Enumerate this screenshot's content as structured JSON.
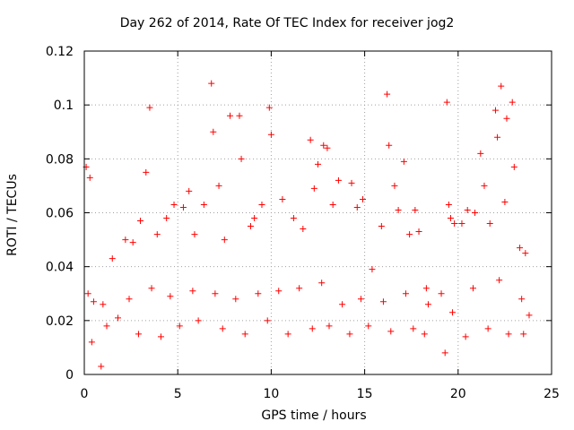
{
  "chart_data": {
    "type": "scatter",
    "title": "Day 262 of 2014, Rate Of TEC Index for receiver jog2",
    "xlabel": "GPS time / hours",
    "ylabel": "ROTI / TECUs",
    "xlim": [
      0,
      25
    ],
    "ylim": [
      0,
      0.12
    ],
    "xticks": [
      0,
      5,
      10,
      15,
      20,
      25
    ],
    "xtick_labels": [
      "0",
      "5",
      "10",
      "15",
      "20",
      "25"
    ],
    "yticks": [
      0,
      0.02,
      0.04,
      0.06,
      0.08,
      0.1,
      0.12
    ],
    "ytick_labels": [
      "0",
      "0.02",
      "0.04",
      "0.06",
      "0.08",
      "0.1",
      "0.12"
    ],
    "grid": true,
    "marker": "+",
    "color": "#ff0000",
    "series": [
      {
        "name": "jog2",
        "x": [
          0.1,
          0.3,
          0.9,
          1.5,
          2.2,
          3.3,
          3.5,
          4.8,
          5.3,
          5.6,
          6.8,
          6.9,
          7.8,
          8.3,
          8.4,
          9.1,
          9.9,
          10.0,
          11.7,
          12.1,
          12.5,
          12.8,
          13.0,
          13.6,
          14.3,
          14.9,
          16.2,
          16.3,
          16.6,
          17.1,
          17.7,
          19.4,
          19.5,
          19.6,
          20.2,
          20.5,
          21.2,
          21.4,
          22.0,
          22.1,
          22.3,
          22.6,
          22.9,
          23.0,
          0.5,
          1.2,
          2.6,
          3.0,
          3.9,
          4.4,
          5.9,
          6.4,
          7.2,
          7.5,
          8.9,
          9.5,
          10.6,
          11.2,
          12.3,
          13.3,
          14.6,
          15.4,
          15.9,
          16.8,
          17.4,
          17.9,
          18.3,
          19.1,
          19.8,
          20.9,
          21.7,
          22.5,
          23.3,
          23.6,
          0.4,
          1.8,
          2.9,
          4.1,
          5.1,
          6.1,
          7.4,
          8.6,
          9.8,
          10.9,
          12.2,
          13.1,
          14.2,
          15.2,
          16.4,
          17.6,
          18.2,
          19.3,
          20.4,
          21.6,
          22.7,
          23.5,
          0.2,
          1.0,
          2.4,
          3.6,
          4.6,
          5.8,
          7.0,
          8.1,
          9.3,
          10.4,
          11.5,
          12.7,
          13.8,
          14.8,
          16.0,
          17.2,
          18.4,
          19.7,
          20.8,
          22.2,
          23.4,
          23.8
        ],
        "y": [
          0.077,
          0.073,
          0.003,
          0.043,
          0.05,
          0.075,
          0.099,
          0.063,
          0.062,
          0.068,
          0.108,
          0.09,
          0.096,
          0.096,
          0.08,
          0.058,
          0.099,
          0.089,
          0.054,
          0.087,
          0.078,
          0.085,
          0.084,
          0.072,
          0.071,
          0.065,
          0.104,
          0.085,
          0.07,
          0.079,
          0.061,
          0.101,
          0.063,
          0.058,
          0.056,
          0.061,
          0.082,
          0.07,
          0.098,
          0.088,
          0.107,
          0.095,
          0.101,
          0.077,
          0.027,
          0.018,
          0.049,
          0.057,
          0.052,
          0.058,
          0.052,
          0.063,
          0.07,
          0.05,
          0.055,
          0.063,
          0.065,
          0.058,
          0.069,
          0.063,
          0.062,
          0.039,
          0.055,
          0.061,
          0.052,
          0.053,
          0.032,
          0.03,
          0.056,
          0.06,
          0.056,
          0.064,
          0.047,
          0.045,
          0.012,
          0.021,
          0.015,
          0.014,
          0.018,
          0.02,
          0.017,
          0.015,
          0.02,
          0.015,
          0.017,
          0.018,
          0.015,
          0.018,
          0.016,
          0.017,
          0.015,
          0.008,
          0.014,
          0.017,
          0.015,
          0.015,
          0.03,
          0.026,
          0.028,
          0.032,
          0.029,
          0.031,
          0.03,
          0.028,
          0.03,
          0.031,
          0.032,
          0.034,
          0.026,
          0.028,
          0.027,
          0.03,
          0.026,
          0.023,
          0.032,
          0.035,
          0.028,
          0.022
        ]
      }
    ]
  }
}
